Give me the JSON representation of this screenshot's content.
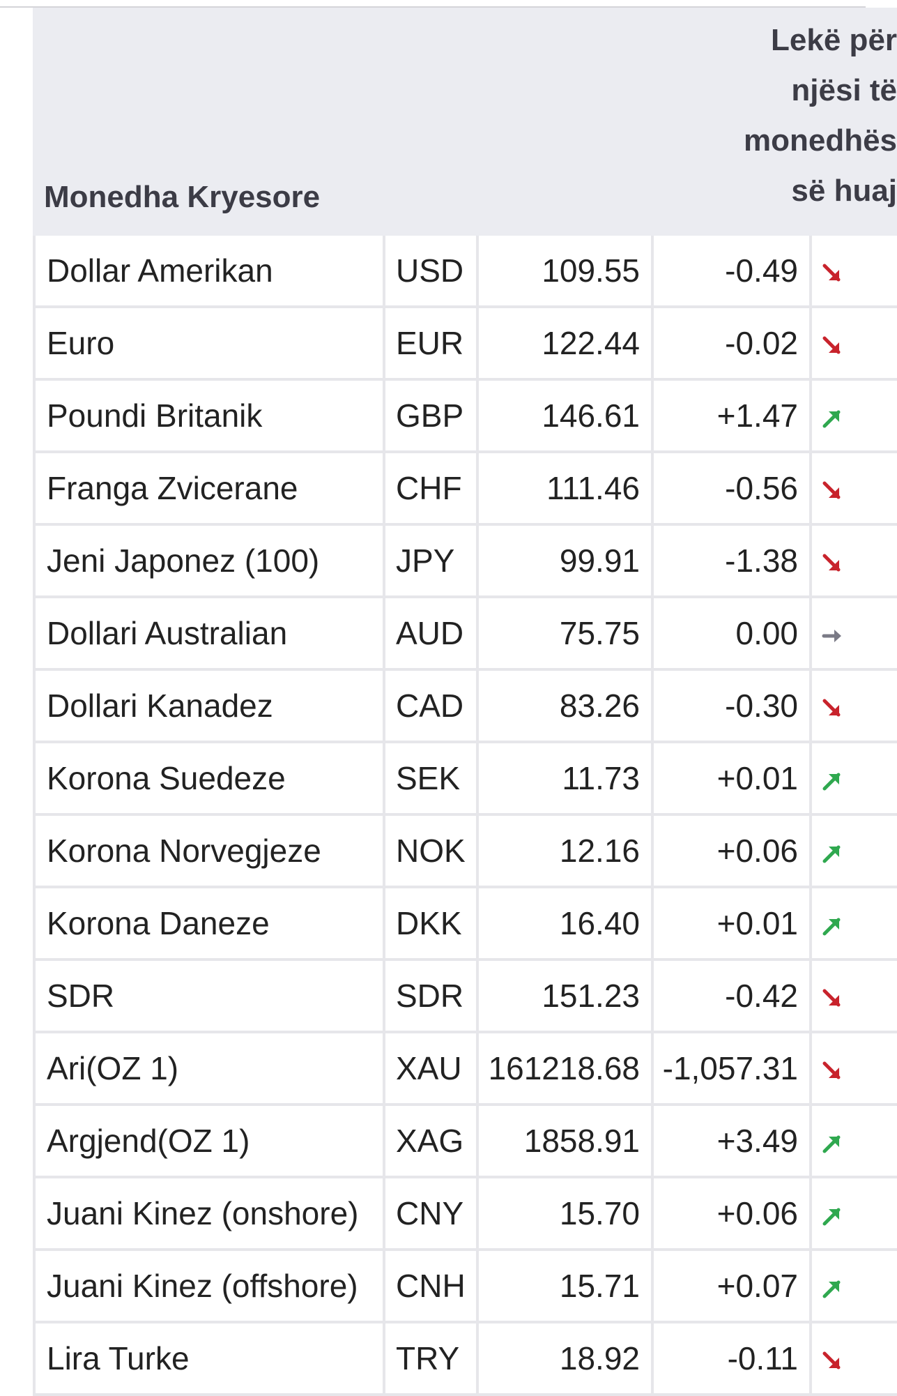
{
  "table": {
    "header": {
      "name_label": "Monedha Kryesore",
      "lek_label_lines": [
        "Lekë për",
        "njësi të",
        "monedhës",
        "së huaj"
      ]
    },
    "rows": [
      {
        "name": "Dollar Amerikan",
        "code": "USD",
        "rate": "109.55",
        "change": "-0.49",
        "trend": "down"
      },
      {
        "name": "Euro",
        "code": "EUR",
        "rate": "122.44",
        "change": "-0.02",
        "trend": "down"
      },
      {
        "name": "Poundi Britanik",
        "code": "GBP",
        "rate": "146.61",
        "change": "+1.47",
        "trend": "up"
      },
      {
        "name": "Franga Zvicerane",
        "code": "CHF",
        "rate": "111.46",
        "change": "-0.56",
        "trend": "down"
      },
      {
        "name": "Jeni Japonez (100)",
        "code": "JPY",
        "rate": "99.91",
        "change": "-1.38",
        "trend": "down"
      },
      {
        "name": "Dollari Australian",
        "code": "AUD",
        "rate": "75.75",
        "change": "0.00",
        "trend": "flat"
      },
      {
        "name": "Dollari Kanadez",
        "code": "CAD",
        "rate": "83.26",
        "change": "-0.30",
        "trend": "down"
      },
      {
        "name": "Korona Suedeze",
        "code": "SEK",
        "rate": "11.73",
        "change": "+0.01",
        "trend": "up"
      },
      {
        "name": "Korona Norvegjeze",
        "code": "NOK",
        "rate": "12.16",
        "change": "+0.06",
        "trend": "up"
      },
      {
        "name": "Korona Daneze",
        "code": "DKK",
        "rate": "16.40",
        "change": "+0.01",
        "trend": "up"
      },
      {
        "name": "SDR",
        "code": "SDR",
        "rate": "151.23",
        "change": "-0.42",
        "trend": "down"
      },
      {
        "name": "Ari(OZ 1)",
        "code": "XAU",
        "rate": "161218.68",
        "change": "-1,057.31",
        "trend": "down"
      },
      {
        "name": "Argjend(OZ 1)",
        "code": "XAG",
        "rate": "1858.91",
        "change": "+3.49",
        "trend": "up"
      },
      {
        "name": "Juani Kinez (onshore)",
        "code": "CNY",
        "rate": "15.70",
        "change": "+0.06",
        "trend": "up"
      },
      {
        "name": "Juani Kinez (offshore)",
        "code": "CNH",
        "rate": "15.71",
        "change": "+0.07",
        "trend": "up"
      },
      {
        "name": "Lira Turke",
        "code": "TRY",
        "rate": "18.92",
        "change": "-0.11",
        "trend": "down"
      }
    ]
  },
  "colors": {
    "up": "#2fa84f",
    "down": "#c8232c",
    "flat": "#7a7a86",
    "header_bg": "#ebecf1",
    "grid": "#e6e6ea"
  },
  "icons": {
    "up": "arrow-up-icon",
    "down": "arrow-down-icon",
    "flat": "arrow-flat-icon"
  }
}
